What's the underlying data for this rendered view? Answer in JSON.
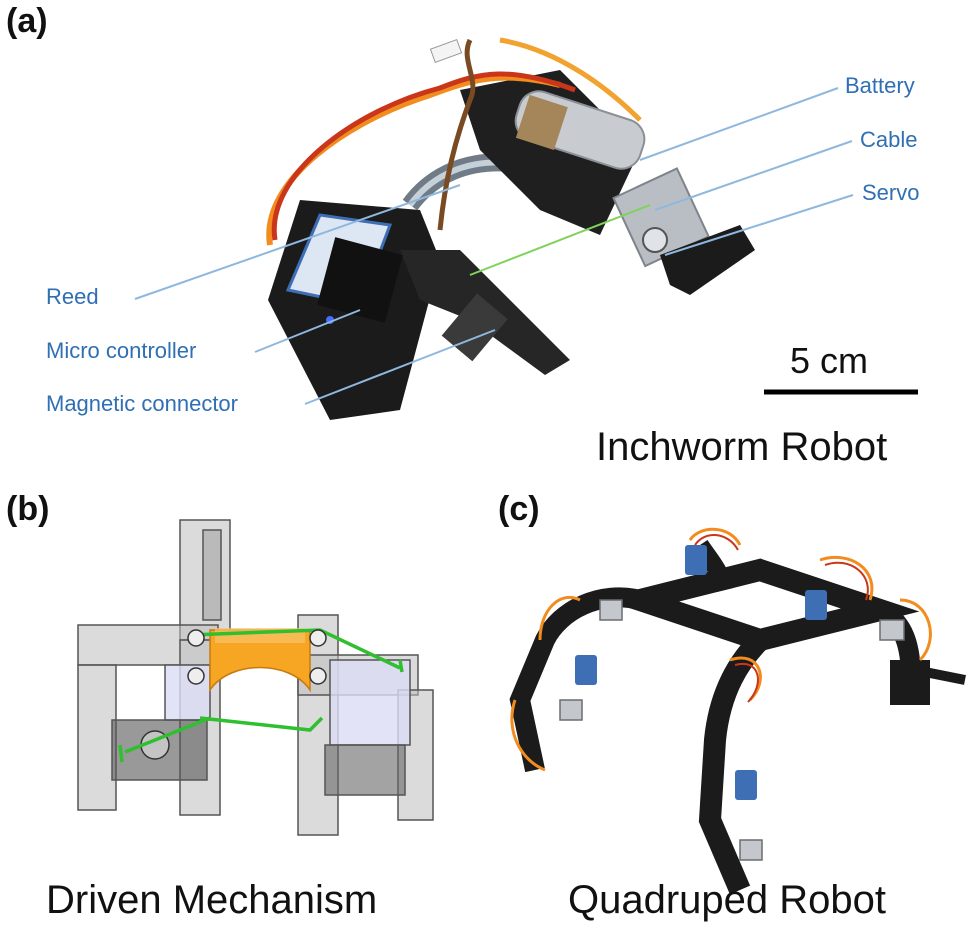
{
  "panels": {
    "a": {
      "label": "(a)",
      "caption": "Inchworm Robot"
    },
    "b": {
      "label": "(b)",
      "caption": "Driven Mechanism"
    },
    "c": {
      "label": "(c)",
      "caption": "Quadruped Robot"
    }
  },
  "callouts": {
    "battery": "Battery",
    "cable": "Cable",
    "servo": "Servo",
    "reed": "Reed",
    "micro_controller": "Micro controller",
    "magnetic_connector": "Magnetic connector"
  },
  "scale_bar": {
    "label": "5 cm"
  },
  "colors": {
    "callout_text": "#2f6fb3",
    "callout_line": "#8fb8de",
    "robot_black": "#1b1b1b",
    "wire_orange": "#f28c1e",
    "wire_red": "#c9361a",
    "wire_brown": "#7a4a22",
    "strip_orange": "#f6a623",
    "link_green": "#2fbf2f",
    "module_blue": "#3e6fb5",
    "ghost_gray": "#b9b9b9"
  }
}
